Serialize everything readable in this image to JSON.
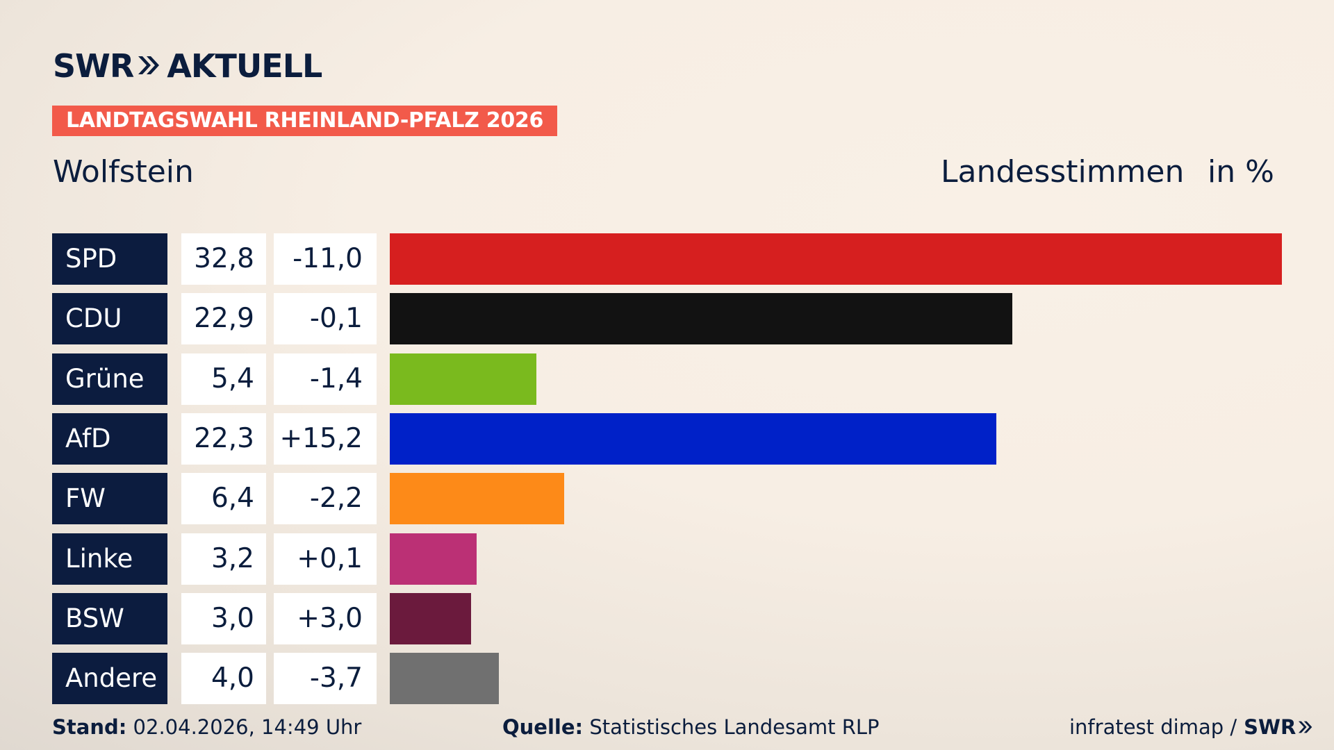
{
  "header": {
    "brand": "SWR",
    "brand_suffix": "AKTUELL",
    "badge": "LANDTAGSWAHL RHEINLAND-PFALZ 2026",
    "place": "Wolfstein",
    "measure": "Landesstimmen",
    "unit": "in %"
  },
  "colors": {
    "navy": "#0c1c3f",
    "badge": "#f25a4a"
  },
  "chart_data": {
    "type": "bar",
    "orientation": "horizontal",
    "categories": [
      "SPD",
      "CDU",
      "Grüne",
      "AfD",
      "FW",
      "Linke",
      "BSW",
      "Andere"
    ],
    "values": [
      32.8,
      22.9,
      5.4,
      22.3,
      6.4,
      3.2,
      3.0,
      4.0
    ],
    "value_labels": [
      "32,8",
      "22,9",
      "5,4",
      "22,3",
      "6,4",
      "3,2",
      "3,0",
      "4,0"
    ],
    "differences": [
      -11.0,
      -0.1,
      -1.4,
      15.2,
      -2.2,
      0.1,
      3.0,
      -3.7
    ],
    "difference_labels": [
      "-11,0",
      "-0,1",
      "-1,4",
      "+15,2",
      "-2,2",
      "+0,1",
      "+3,0",
      "-3,7"
    ],
    "colors": [
      "#d61f1f",
      "#121212",
      "#7aba1e",
      "#0021c8",
      "#fd8a18",
      "#bb3075",
      "#6b1a3d",
      "#707070"
    ],
    "xlim": [
      0,
      32.8
    ]
  },
  "footer": {
    "stand_label": "Stand:",
    "stand_value": "02.04.2026, 14:49 Uhr",
    "quelle_label": "Quelle:",
    "quelle_value": "Statistisches Landesamt RLP",
    "credit": "infratest dimap /",
    "credit_brand": "SWR"
  }
}
